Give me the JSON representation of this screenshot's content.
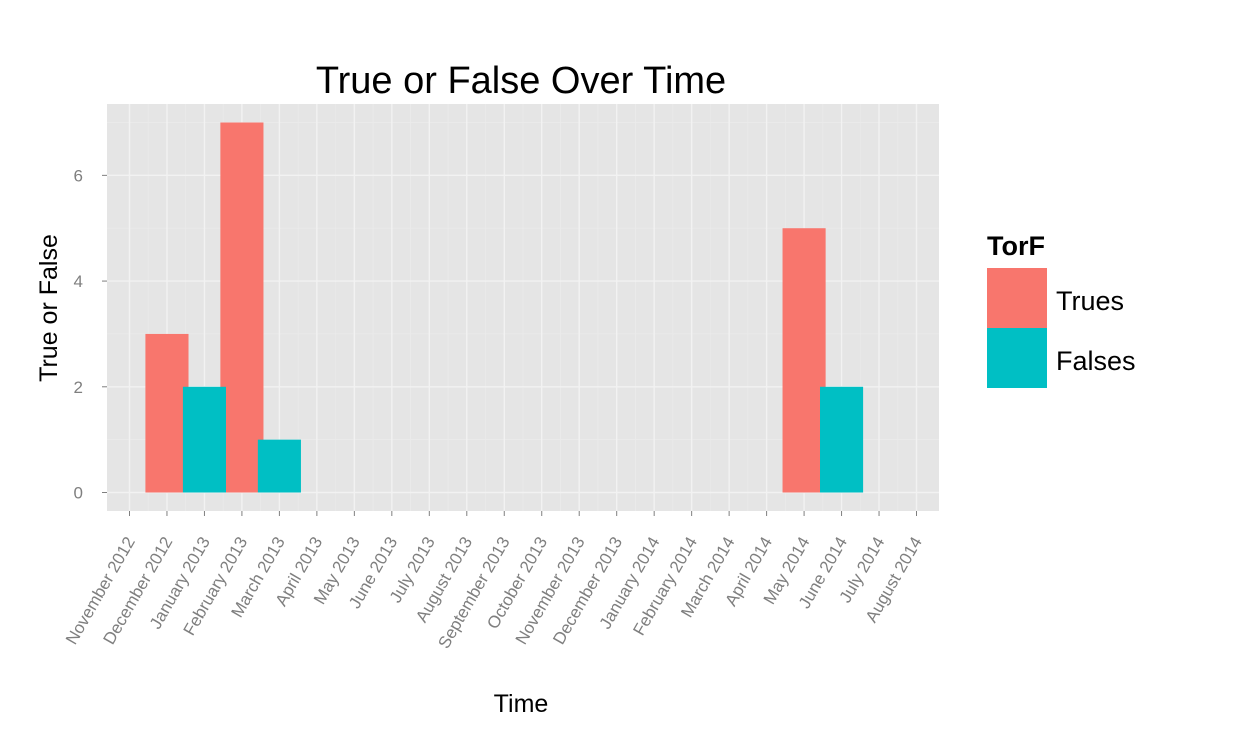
{
  "chart_data": {
    "type": "bar",
    "title": "True or False Over Time",
    "xlabel": "Time",
    "ylabel": "True or False",
    "categories": [
      "November 2012",
      "December 2012",
      "January 2013",
      "February 2013",
      "March 2013",
      "April 2013",
      "May 2013",
      "June 2013",
      "July 2013",
      "August 2013",
      "September 2013",
      "October 2013",
      "November 2013",
      "December 2013",
      "January 2014",
      "February 2014",
      "March 2014",
      "April 2014",
      "May 2014",
      "June 2014",
      "July 2014",
      "August 2014"
    ],
    "yticks": [
      0,
      2,
      4,
      6
    ],
    "ylim": [
      -0.35,
      7.35
    ],
    "legend": {
      "title": "TorF",
      "position": "right"
    },
    "series": [
      {
        "name": "Trues",
        "color": "#F8766D",
        "points": [
          {
            "x": "December 2012",
            "y": 3
          },
          {
            "x": "February 2013",
            "y": 7
          },
          {
            "x": "May 2014",
            "y": 5
          }
        ]
      },
      {
        "name": "Falses",
        "color": "#00BFC4",
        "points": [
          {
            "x": "January 2013",
            "y": 2
          },
          {
            "x": "March 2013",
            "y": 1
          },
          {
            "x": "June 2014",
            "y": 2
          }
        ]
      }
    ],
    "grid": true
  }
}
